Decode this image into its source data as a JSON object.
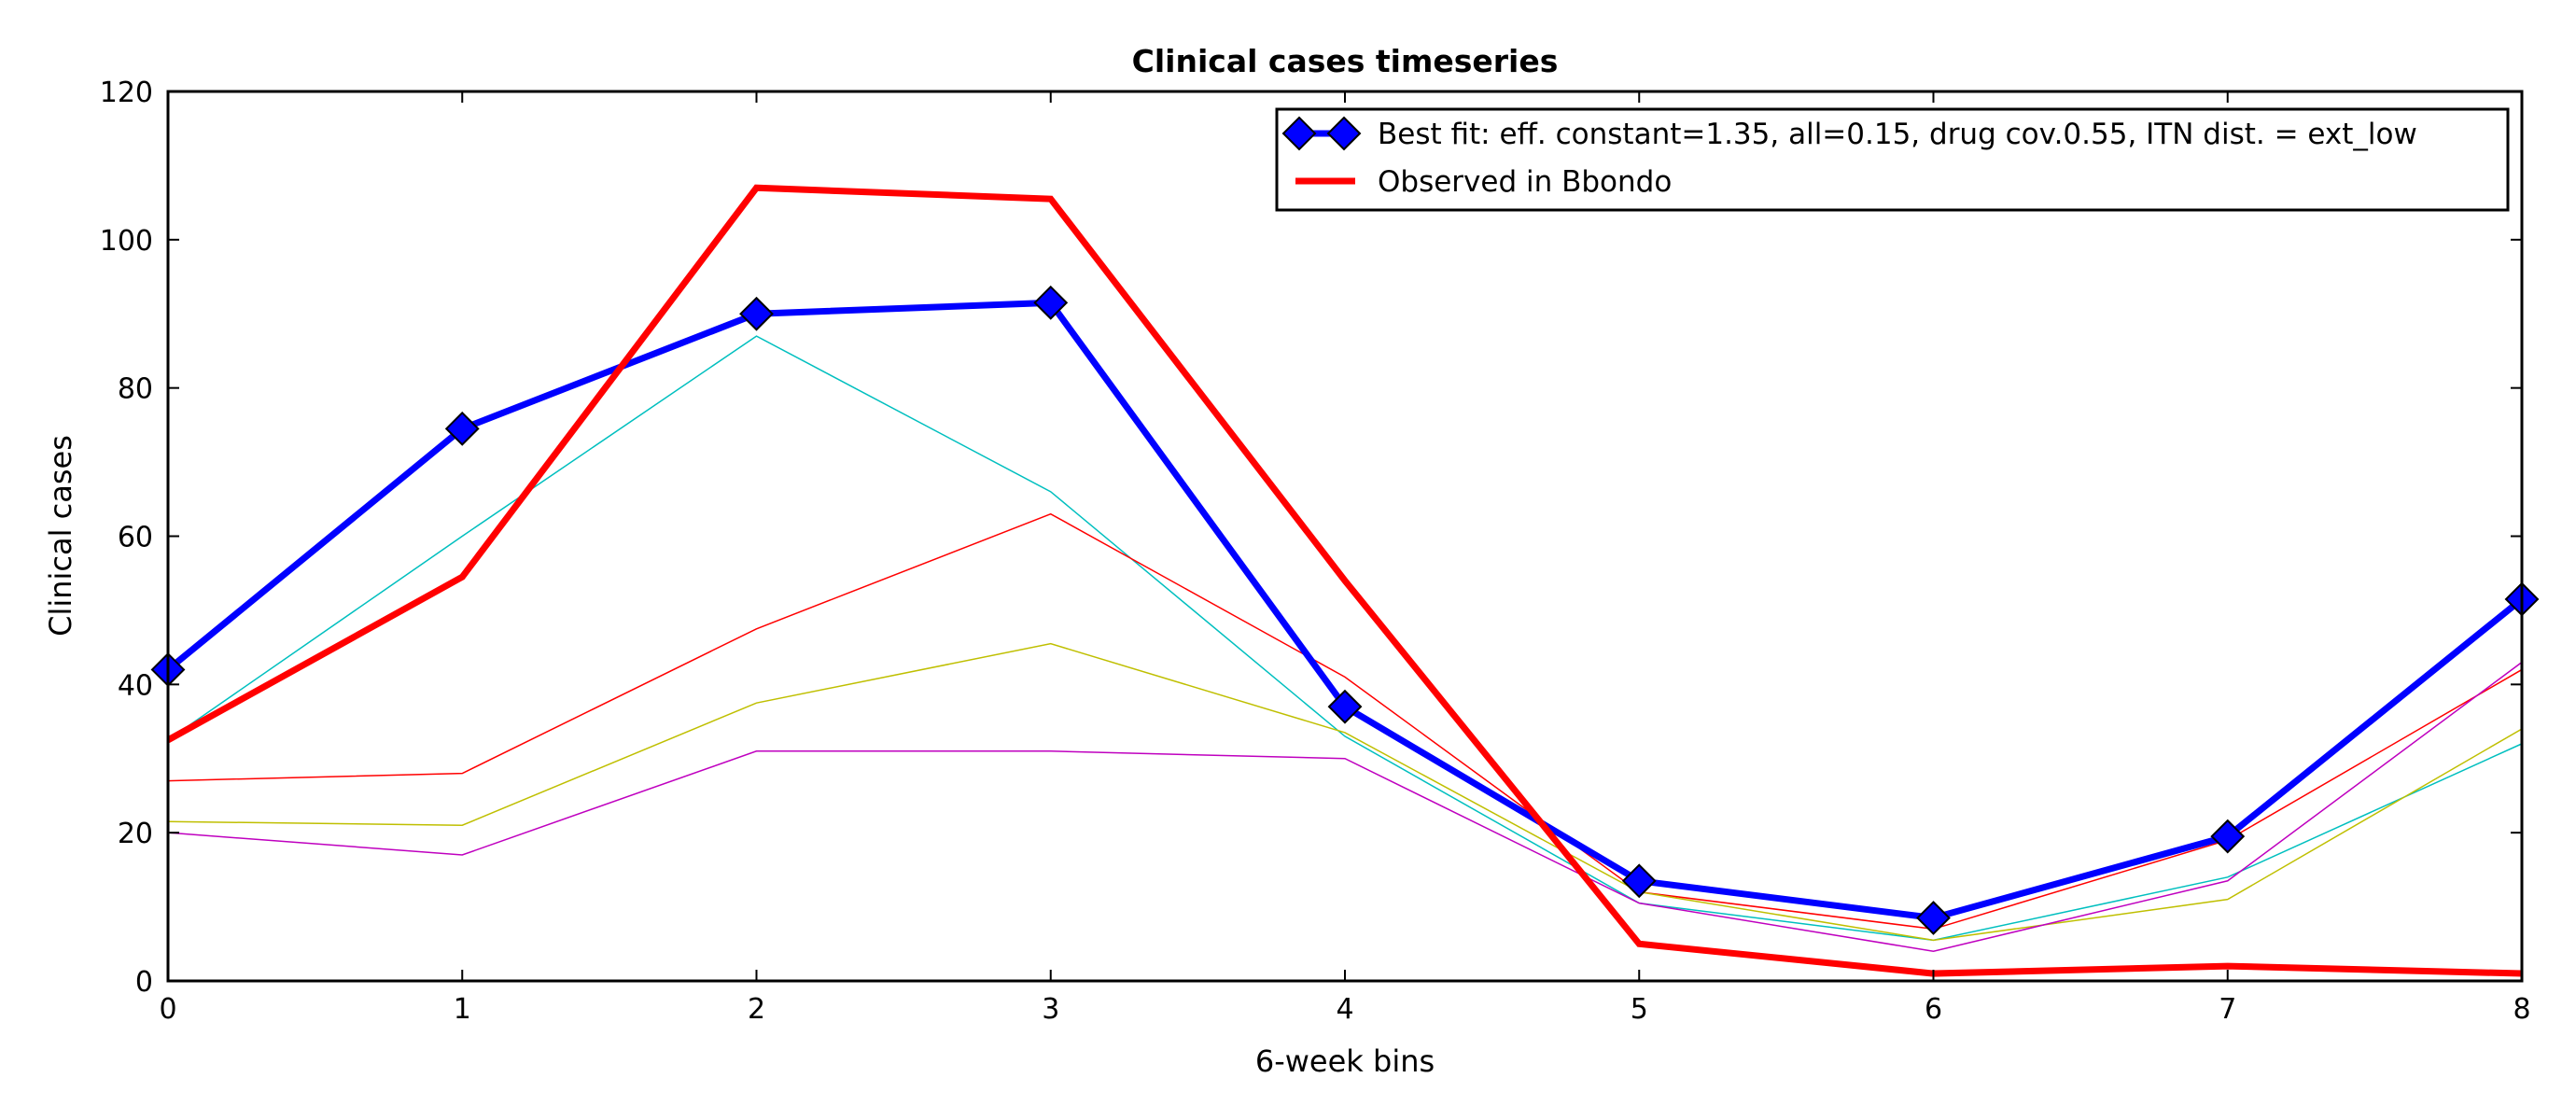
{
  "chart_data": {
    "type": "line",
    "title": "Clinical cases timeseries",
    "xlabel": "6-week bins",
    "ylabel": "Clinical cases",
    "xlim": [
      0,
      8
    ],
    "ylim": [
      0,
      120
    ],
    "x": [
      0,
      1,
      2,
      3,
      4,
      5,
      6,
      7,
      8
    ],
    "xticks": [
      "0",
      "1",
      "2",
      "3",
      "4",
      "5",
      "6",
      "7",
      "8"
    ],
    "yticks": [
      "0",
      "20",
      "40",
      "60",
      "80",
      "100",
      "120"
    ],
    "grid": false,
    "legend_position": "top-right",
    "series": [
      {
        "name": "",
        "color": "#00bfbf",
        "width": 1.5,
        "marker": "none",
        "values": [
          32.5,
          60,
          87,
          66,
          33,
          10.5,
          5.5,
          14,
          32
        ]
      },
      {
        "name": "",
        "color": "#ff0000",
        "width": 1.5,
        "marker": "none",
        "values": [
          27,
          28,
          47.5,
          63,
          41,
          12,
          7,
          19,
          42
        ]
      },
      {
        "name": "",
        "color": "#bfbf00",
        "width": 1.5,
        "marker": "none",
        "values": [
          21.5,
          21,
          37.5,
          45.5,
          33.5,
          12,
          5.5,
          11,
          34
        ]
      },
      {
        "name": "",
        "color": "#bf00bf",
        "width": 1.5,
        "marker": "none",
        "values": [
          20,
          17,
          31,
          31,
          30,
          10.5,
          4,
          13.5,
          43
        ]
      },
      {
        "name": "Best fit: eff. constant=1.35, all=0.15, drug cov.0.55, ITN dist. = ext_low",
        "color": "#0000ff",
        "width": 7,
        "marker": "diamond",
        "legend": true,
        "values": [
          42,
          74.5,
          90,
          91.5,
          37,
          13.5,
          8.5,
          19.5,
          51.5
        ]
      },
      {
        "name": "Observed in Bbondo",
        "color": "#ff0000",
        "width": 7,
        "marker": "none",
        "legend": true,
        "values": [
          32.5,
          54.5,
          107,
          105.5,
          54,
          5,
          1,
          2,
          1
        ]
      }
    ]
  }
}
